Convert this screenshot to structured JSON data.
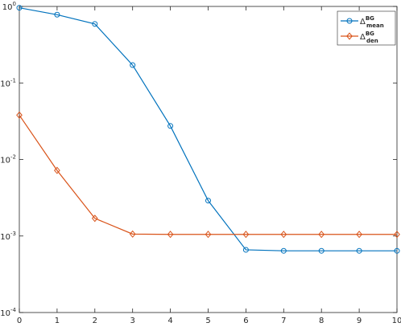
{
  "chart_data": {
    "type": "line",
    "log_y": true,
    "grid": false,
    "legend_position": "upper-right",
    "x": [
      0,
      1,
      2,
      3,
      4,
      5,
      6,
      7,
      8,
      9,
      10
    ],
    "xlim": [
      0,
      10
    ],
    "xticks": [
      0,
      1,
      2,
      3,
      4,
      5,
      6,
      7,
      8,
      9,
      10
    ],
    "ylim": [
      0.0001,
      1
    ],
    "yticks": [
      {
        "value": 1,
        "label": "10",
        "exponent": "0"
      },
      {
        "value": 0.1,
        "label": "10",
        "exponent": "-1"
      },
      {
        "value": 0.01,
        "label": "10",
        "exponent": "-2"
      },
      {
        "value": 0.001,
        "label": "10",
        "exponent": "-3"
      },
      {
        "value": 0.0001,
        "label": "10",
        "exponent": "-4"
      }
    ],
    "series": [
      {
        "name": "Δ",
        "name_sup": "BG",
        "name_sub": "mean",
        "color": "#0072BD",
        "marker": "circle",
        "values": [
          0.96,
          0.78,
          0.59,
          0.171,
          0.0274,
          0.0029,
          0.00066,
          0.00064,
          0.00064,
          0.00064,
          0.00064
        ]
      },
      {
        "name": "Δ",
        "name_sup": "BG",
        "name_sub": "den",
        "color": "#D95319",
        "marker": "diamond",
        "values": [
          0.038,
          0.0072,
          0.0017,
          0.00106,
          0.00105,
          0.00105,
          0.00105,
          0.00105,
          0.00105,
          0.00105,
          0.00105
        ]
      }
    ]
  }
}
